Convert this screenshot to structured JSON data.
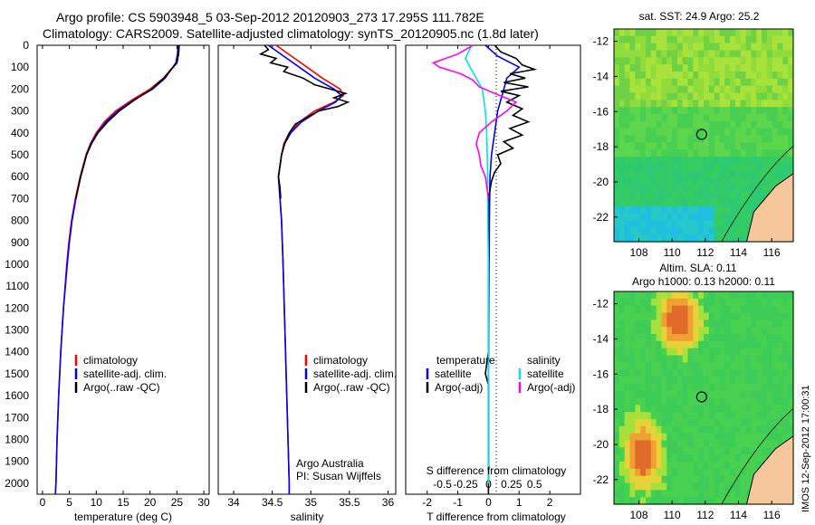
{
  "header": {
    "line1": "Argo profile: CS 5903948_5 03-Sep-2012 20120903_273 17.295S 111.782E",
    "line2": "Climatology: CARS2009. Satellite-adjusted climatology: synTS_20120905.nc (1.8d later)"
  },
  "colors": {
    "climatology": "#ff0000",
    "satellite": "#0000ff",
    "argo": "#000000",
    "satellite_s": "#00e5e5",
    "argo_s": "#ff00ff",
    "land": "#f5c79a"
  },
  "chart_data": [
    {
      "type": "line",
      "panel": "temperature",
      "xlabel": "temperature (deg C)",
      "ylabel": "",
      "xlim": [
        -1,
        31
      ],
      "ylim": [
        2050,
        0
      ],
      "xticks": [
        0,
        5,
        10,
        15,
        20,
        25,
        30
      ],
      "yticks": [
        0,
        100,
        200,
        300,
        400,
        500,
        600,
        700,
        800,
        900,
        1000,
        1100,
        1200,
        1300,
        1400,
        1500,
        1600,
        1700,
        1800,
        1900,
        2000
      ],
      "legend": [
        "climatology",
        "satellite-adj. clim.",
        "Argo(..raw -QC)"
      ],
      "series": [
        {
          "name": "climatology",
          "depth": [
            0,
            40,
            80,
            150,
            200,
            250,
            300,
            350,
            400,
            450,
            500,
            600,
            700,
            800,
            900,
            1000,
            1200,
            1400,
            1600,
            1800,
            2000,
            2050
          ],
          "values": [
            25.4,
            25.3,
            24.9,
            22.5,
            20.0,
            16.6,
            13.6,
            11.5,
            10.0,
            8.9,
            8.1,
            7.0,
            6.1,
            5.4,
            4.9,
            4.5,
            3.9,
            3.4,
            3.0,
            2.7,
            2.5,
            2.4
          ]
        },
        {
          "name": "satellite-adj. clim.",
          "depth": [
            0,
            40,
            80,
            150,
            200,
            250,
            300,
            350,
            400,
            450,
            500,
            600,
            700,
            800,
            900,
            1000,
            1200,
            1400,
            1600,
            1800,
            2000,
            2050
          ],
          "values": [
            25.2,
            25.1,
            24.8,
            22.8,
            20.5,
            17.0,
            14.0,
            11.8,
            10.2,
            9.0,
            8.2,
            7.1,
            6.2,
            5.5,
            5.0,
            4.6,
            3.9,
            3.4,
            3.0,
            2.7,
            2.5,
            2.4
          ]
        },
        {
          "name": "Argo(..raw -QC)",
          "depth": [
            0,
            40,
            80,
            150,
            200,
            250,
            300,
            350,
            400,
            450,
            500,
            600,
            700
          ],
          "values": [
            25.4,
            25.3,
            25.0,
            22.6,
            20.3,
            17.1,
            14.3,
            12.1,
            10.3,
            9.1,
            8.2,
            7.1,
            6.2
          ]
        }
      ]
    },
    {
      "type": "line",
      "panel": "salinity",
      "xlabel": "salinity",
      "ylabel": "",
      "xlim": [
        33.8,
        36.1
      ],
      "ylim": [
        2050,
        0
      ],
      "xticks": [
        34,
        34.5,
        35,
        35.5,
        36
      ],
      "legend": [
        "climatology",
        "satellite-adj. clim.",
        "Argo(..raw -QC)"
      ],
      "annotation": [
        "Argo Australia",
        "PI: Susan Wijffels"
      ],
      "series": [
        {
          "name": "climatology",
          "depth": [
            0,
            50,
            100,
            150,
            200,
            230,
            260,
            300,
            350,
            400,
            450,
            500,
            550,
            600,
            700,
            800,
            1000,
            1500,
            2000,
            2050
          ],
          "values": [
            34.55,
            34.75,
            34.95,
            35.15,
            35.38,
            35.42,
            35.3,
            35.05,
            34.85,
            34.72,
            34.65,
            34.62,
            34.6,
            34.58,
            34.6,
            34.62,
            34.64,
            34.68,
            34.72,
            34.72
          ]
        },
        {
          "name": "satellite-adj. clim.",
          "depth": [
            0,
            50,
            100,
            150,
            200,
            230,
            260,
            300,
            350,
            400,
            450,
            500,
            550,
            600,
            700,
            800,
            1000,
            1500,
            2000,
            2050
          ],
          "values": [
            34.45,
            34.65,
            34.85,
            35.05,
            35.3,
            35.4,
            35.32,
            35.1,
            34.88,
            34.74,
            34.66,
            34.62,
            34.6,
            34.58,
            34.6,
            34.62,
            34.64,
            34.68,
            34.72,
            34.72
          ]
        },
        {
          "name": "Argo(..raw -QC)",
          "depth": [
            0,
            20,
            40,
            60,
            80,
            100,
            120,
            150,
            180,
            200,
            220,
            240,
            260,
            280,
            300,
            330,
            360,
            400,
            450,
            500,
            550,
            600,
            650,
            700
          ],
          "values": [
            34.4,
            34.45,
            34.35,
            34.55,
            34.48,
            34.7,
            34.65,
            34.9,
            35.05,
            35.25,
            35.45,
            35.3,
            35.48,
            35.35,
            35.1,
            34.95,
            34.8,
            34.72,
            34.66,
            34.62,
            34.6,
            34.58,
            34.6,
            34.61
          ]
        }
      ]
    },
    {
      "type": "line",
      "panel": "differences",
      "xlabel": "T difference from climatology",
      "x2label": "S difference from climatology",
      "xlim": [
        -2.7,
        3.0
      ],
      "ylim": [
        2050,
        0
      ],
      "xticks": [
        -2,
        -1,
        0,
        1,
        2
      ],
      "x2ticks": [
        -0.5,
        -0.25,
        0,
        0.25,
        0.5
      ],
      "x2ticklabels": [
        "-0.5",
        "-0.25",
        "0",
        "0.25",
        "0.5"
      ],
      "legend_left_title": "temperature",
      "legend_right_title": "salinity",
      "legend": [
        "satellite",
        "Argo(-adj)",
        "satellite",
        "Argo(-adj)"
      ],
      "series": [
        {
          "name": "temperature satellite",
          "depth": [
            0,
            50,
            100,
            150,
            200,
            250,
            300,
            400,
            500,
            600,
            800,
            1000,
            1500,
            2000
          ],
          "values": [
            -0.1,
            0.3,
            1.0,
            0.6,
            0.5,
            0.4,
            0.3,
            0.2,
            0.1,
            0.05,
            0.03,
            0.02,
            0.0,
            0.0
          ]
        },
        {
          "name": "temperature Argo(-adj)",
          "depth": [
            0,
            30,
            60,
            90,
            110,
            130,
            150,
            170,
            190,
            210,
            230,
            260,
            290,
            320,
            350,
            380,
            410,
            440,
            470,
            500,
            540,
            580,
            620,
            660,
            700,
            1400,
            1500,
            1550,
            2050
          ],
          "values": [
            0.2,
            0.4,
            0.9,
            1.1,
            1.5,
            0.7,
            1.2,
            0.5,
            1.3,
            0.4,
            1.0,
            0.6,
            1.1,
            0.8,
            1.3,
            0.7,
            1.1,
            0.5,
            0.8,
            0.3,
            0.4,
            0.2,
            0.1,
            0.05,
            0.0,
            0.0,
            -0.1,
            0.0,
            0.0
          ]
        },
        {
          "name": "salinity satellite",
          "depth": [
            0,
            60,
            100,
            150,
            200,
            250,
            300,
            400,
            500,
            600,
            800,
            1000,
            1500,
            2000
          ],
          "values": [
            -0.55,
            -0.75,
            -0.6,
            -0.4,
            -0.2,
            -0.15,
            -0.1,
            -0.06,
            -0.04,
            -0.03,
            -0.02,
            0.0,
            0.0,
            0.0
          ]
        },
        {
          "name": "salinity Argo(-adj)",
          "depth": [
            0,
            40,
            80,
            100,
            130,
            160,
            190,
            220,
            260,
            300,
            350,
            400,
            450,
            500,
            550,
            600,
            650,
            700
          ],
          "values": [
            -0.5,
            -1.0,
            -1.8,
            -1.6,
            -0.9,
            -0.5,
            -0.3,
            0.2,
            0.9,
            0.6,
            0.1,
            -0.3,
            -0.4,
            -0.3,
            -0.25,
            -0.1,
            -0.05,
            0.0
          ]
        }
      ]
    },
    {
      "type": "heatmap",
      "panel": "map-sst",
      "title": "sat. SST: 24.9  Argo: 25.2",
      "xticks": [
        108,
        110,
        112,
        114,
        116
      ],
      "yticks": [
        -12,
        -14,
        -16,
        -18,
        -20,
        -22
      ],
      "xlim": [
        106.5,
        117.3
      ],
      "ylim": [
        -23.4,
        -11.3
      ],
      "marker": {
        "lon": 111.782,
        "lat": -17.295
      }
    },
    {
      "type": "heatmap",
      "panel": "map-sla",
      "title": "Altim. SLA: 0.11",
      "subtitle": "Argo h1000: 0.13 h2000: 0.11",
      "xticks": [
        108,
        110,
        112,
        114,
        116
      ],
      "yticks": [
        -12,
        -14,
        -16,
        -18,
        -20,
        -22
      ],
      "xlim": [
        106.5,
        117.3
      ],
      "ylim": [
        -23.4,
        -11.3
      ],
      "marker": {
        "lon": 111.782,
        "lat": -17.295
      }
    }
  ],
  "footer": {
    "stamp": "IMOS 12-Sep-2012 17:00:31"
  }
}
